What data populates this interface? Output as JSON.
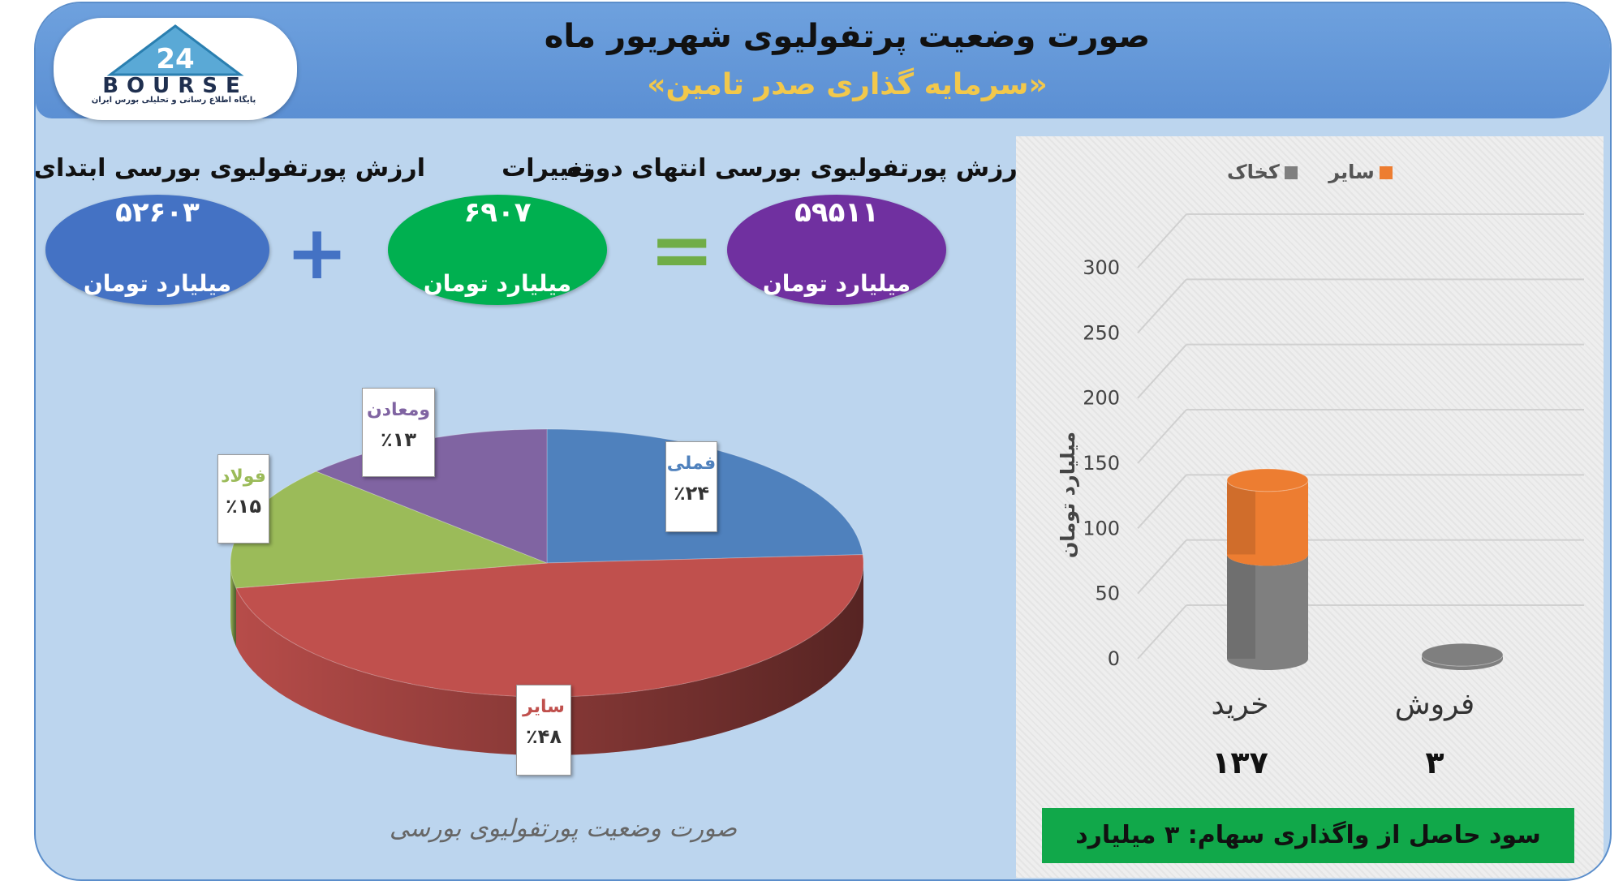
{
  "header": {
    "logo_text": "BOURSE",
    "logo_number": "24",
    "logo_subtitle": "پایگاه اطلاع رسانی و تحلیلی بورس ایران",
    "title": "صورت وضعیت پرتفولیوی شهریور ماه",
    "subtitle": "«سرمایه گذاری صدر تامین»"
  },
  "summary": {
    "start": {
      "label": "ارزش پورتفولیوی بورسی ابتدای دوره",
      "value": "۵۲۶۰۳",
      "unit": "میلیارد تومان",
      "color": "#4472c4"
    },
    "change": {
      "label": "تغییرات",
      "value": "۶۹۰۷",
      "unit": "میلیارد تومان",
      "color": "#00b050"
    },
    "end": {
      "label": "ارزش پورتفولیوی بورسی انتهای دوره",
      "value": "۵۹۵۱۱",
      "unit": "میلیارد تومان",
      "color": "#7030a0"
    },
    "plus_sign": "+",
    "equals_sign": "="
  },
  "pie_caption": "صورت وضعیت پورتفولیوی بورسی",
  "bar_panel": {
    "legend": [
      {
        "name": "سایر",
        "color": "#ed7d31"
      },
      {
        "name": "کخاک",
        "color": "#7f7f7f"
      }
    ],
    "ylabel": "میلیارد تومان",
    "yticks": [
      "300",
      "250",
      "200",
      "150",
      "100",
      "50",
      "0"
    ],
    "categories": [
      "خرید",
      "فروش"
    ],
    "category_totals": [
      "۱۳۷",
      "۳"
    ],
    "footer": "سود حاصل از واگذاری سهام: ۳ میلیارد تومان"
  },
  "chart_data": [
    {
      "type": "pie",
      "title": "صورت وضعیت پورتفولیوی بورسی",
      "slices": [
        {
          "name": "فملی",
          "value": 24,
          "label": "٪۲۴",
          "color": "#4f81bd"
        },
        {
          "name": "سایر",
          "value": 48,
          "label": "٪۴۸",
          "color": "#c0504d"
        },
        {
          "name": "فولاد",
          "value": 15,
          "label": "٪۱۵",
          "color": "#9bbb59"
        },
        {
          "name": "ومعادن",
          "value": 13,
          "label": "٪۱۳",
          "color": "#8064a2"
        }
      ]
    },
    {
      "type": "bar",
      "categories": [
        "خرید",
        "فروش"
      ],
      "series": [
        {
          "name": "کخاک",
          "values": [
            80,
            3
          ],
          "color": "#7f7f7f"
        },
        {
          "name": "سایر",
          "values": [
            57,
            0
          ],
          "color": "#ed7d31"
        }
      ],
      "ylabel": "میلیارد تومان",
      "ylim": [
        0,
        300
      ],
      "grid": true,
      "legend_position": "top"
    }
  ]
}
